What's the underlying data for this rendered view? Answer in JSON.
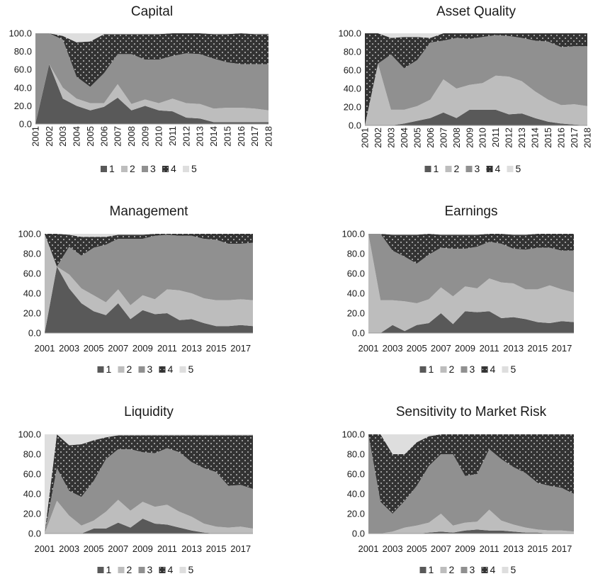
{
  "colors": {
    "1": "#595959",
    "2": "#bdbdbd",
    "3": "#909090",
    "4": "#333333",
    "5": "#dedede"
  },
  "chart_data": [
    {
      "type": "area",
      "stacked": true,
      "title": "Capital",
      "x": [
        "2001",
        "2002",
        "2003",
        "2004",
        "2005",
        "2006",
        "2007",
        "2008",
        "2009",
        "2010",
        "2011",
        "2012",
        "2013",
        "2014",
        "2015",
        "2016",
        "2017",
        "2018"
      ],
      "x_tick_labels": [
        "2001",
        "2002",
        "2003",
        "2004",
        "2005",
        "2006",
        "2007",
        "2008",
        "2009",
        "2010",
        "2011",
        "2012",
        "2013",
        "2014",
        "2015",
        "2016",
        "2017",
        "2018"
      ],
      "ylim": [
        0,
        100
      ],
      "yticks": [
        "0.0",
        "20.0",
        "40.0",
        "60.0",
        "80.0",
        "100.0"
      ],
      "legend": {
        "position": "bottom",
        "entries": [
          "1",
          "2",
          "3",
          "4",
          "5"
        ]
      },
      "series": [
        {
          "name": "1",
          "values": [
            0,
            66,
            28,
            20,
            15,
            19,
            29,
            15,
            20,
            15,
            14,
            7,
            6,
            2,
            2,
            2,
            2,
            2
          ]
        },
        {
          "name": "2",
          "values": [
            0,
            0,
            12,
            8,
            8,
            4,
            15,
            7,
            7,
            8,
            14,
            16,
            16,
            15,
            16,
            16,
            15,
            13
          ]
        },
        {
          "name": "3",
          "values": [
            100,
            34,
            53,
            24,
            18,
            33,
            33,
            55,
            44,
            48,
            47,
            55,
            55,
            55,
            50,
            48,
            49,
            51
          ]
        },
        {
          "name": "4",
          "values": [
            0,
            0,
            4,
            38,
            50,
            43,
            22,
            22,
            28,
            28,
            25,
            22,
            23,
            27,
            31,
            34,
            33,
            33
          ]
        },
        {
          "name": "5",
          "values": [
            0,
            0,
            3,
            10,
            9,
            1,
            1,
            1,
            1,
            1,
            0,
            0,
            0,
            1,
            1,
            0,
            1,
            1
          ]
        }
      ]
    },
    {
      "type": "area",
      "stacked": true,
      "title": "Asset Quality",
      "x": [
        "2001",
        "2002",
        "2003",
        "2004",
        "2005",
        "2006",
        "2007",
        "2008",
        "2009",
        "2010",
        "2011",
        "2012",
        "2013",
        "2014",
        "2015",
        "2016",
        "2017",
        "2018"
      ],
      "x_tick_labels": [
        "2001",
        "2002",
        "2003",
        "2004",
        "2005",
        "2006",
        "2007",
        "2008",
        "2009",
        "2010",
        "2011",
        "2012",
        "2013",
        "2014",
        "2015",
        "2016",
        "2017",
        "2018"
      ],
      "ylim": [
        0,
        100
      ],
      "yticks": [
        "0.0",
        "20.0",
        "40.0",
        "60.0",
        "80.0",
        "100.0"
      ],
      "legend": {
        "position": "bottom",
        "entries": [
          "1",
          "2",
          "3",
          "4",
          "5"
        ]
      },
      "series": [
        {
          "name": "1",
          "values": [
            0,
            0,
            0,
            2,
            5,
            8,
            14,
            8,
            17,
            17,
            17,
            12,
            13,
            8,
            4,
            2,
            1,
            0
          ]
        },
        {
          "name": "2",
          "values": [
            0,
            67,
            17,
            15,
            16,
            20,
            36,
            32,
            27,
            29,
            37,
            41,
            35,
            29,
            24,
            20,
            22,
            21
          ]
        },
        {
          "name": "3",
          "values": [
            0,
            0,
            60,
            45,
            50,
            62,
            42,
            55,
            50,
            50,
            44,
            44,
            47,
            55,
            63,
            63,
            63,
            65
          ]
        },
        {
          "name": "4",
          "values": [
            100,
            33,
            18,
            34,
            25,
            5,
            8,
            5,
            6,
            4,
            2,
            3,
            5,
            8,
            9,
            15,
            14,
            14
          ]
        },
        {
          "name": "5",
          "values": [
            0,
            0,
            5,
            4,
            4,
            5,
            0,
            0,
            0,
            0,
            0,
            0,
            0,
            0,
            0,
            0,
            0,
            0
          ]
        }
      ]
    },
    {
      "type": "area",
      "stacked": true,
      "title": "Management",
      "x": [
        "2001",
        "2002",
        "2003",
        "2004",
        "2005",
        "2006",
        "2007",
        "2008",
        "2009",
        "2010",
        "2011",
        "2012",
        "2013",
        "2014",
        "2015",
        "2016",
        "2017",
        "2018"
      ],
      "x_tick_labels": [
        "2001",
        "2003",
        "2005",
        "2007",
        "2009",
        "2011",
        "2013",
        "2015",
        "2017"
      ],
      "ylim": [
        0,
        100
      ],
      "yticks": [
        "0.0",
        "20.0",
        "40.0",
        "60.0",
        "80.0",
        "100.0"
      ],
      "legend": {
        "position": "bottom",
        "entries": [
          "1",
          "2",
          "3",
          "4",
          "5"
        ]
      },
      "series": [
        {
          "name": "1",
          "values": [
            0,
            67,
            45,
            30,
            22,
            18,
            30,
            14,
            23,
            19,
            20,
            13,
            14,
            10,
            7,
            7,
            8,
            7
          ]
        },
        {
          "name": "2",
          "values": [
            100,
            0,
            14,
            15,
            16,
            13,
            14,
            14,
            15,
            15,
            24,
            30,
            26,
            25,
            26,
            26,
            26,
            26
          ]
        },
        {
          "name": "3",
          "values": [
            0,
            0,
            28,
            33,
            48,
            58,
            51,
            67,
            57,
            64,
            55,
            55,
            58,
            60,
            61,
            57,
            56,
            58
          ]
        },
        {
          "name": "4",
          "values": [
            0,
            33,
            12,
            19,
            11,
            8,
            4,
            4,
            4,
            2,
            1,
            2,
            2,
            5,
            6,
            10,
            10,
            9
          ]
        },
        {
          "name": "5",
          "values": [
            0,
            0,
            1,
            3,
            3,
            3,
            1,
            1,
            1,
            0,
            0,
            0,
            0,
            0,
            0,
            0,
            0,
            0
          ]
        }
      ]
    },
    {
      "type": "area",
      "stacked": true,
      "title": "Earnings",
      "x": [
        "2001",
        "2002",
        "2003",
        "2004",
        "2005",
        "2006",
        "2007",
        "2008",
        "2009",
        "2010",
        "2011",
        "2012",
        "2013",
        "2014",
        "2015",
        "2016",
        "2017",
        "2018"
      ],
      "x_tick_labels": [
        "2001",
        "2003",
        "2005",
        "2007",
        "2009",
        "2011",
        "2013",
        "2015",
        "2017"
      ],
      "ylim": [
        0,
        100
      ],
      "yticks": [
        "0.0",
        "20.0",
        "40.0",
        "60.0",
        "80.0",
        "100.0"
      ],
      "legend": {
        "position": "bottom",
        "entries": [
          "1",
          "2",
          "3",
          "4",
          "5"
        ]
      },
      "series": [
        {
          "name": "1",
          "values": [
            0,
            0,
            8,
            2,
            8,
            10,
            20,
            9,
            22,
            21,
            22,
            15,
            16,
            14,
            11,
            10,
            12,
            11
          ]
        },
        {
          "name": "2",
          "values": [
            100,
            33,
            25,
            30,
            22,
            24,
            26,
            28,
            25,
            24,
            33,
            36,
            34,
            30,
            33,
            38,
            32,
            30
          ]
        },
        {
          "name": "3",
          "values": [
            0,
            67,
            50,
            45,
            40,
            45,
            40,
            48,
            38,
            42,
            37,
            39,
            35,
            40,
            42,
            38,
            39,
            42
          ]
        },
        {
          "name": "4",
          "values": [
            0,
            0,
            16,
            22,
            29,
            21,
            13,
            14,
            14,
            12,
            8,
            10,
            14,
            15,
            14,
            14,
            17,
            17
          ]
        },
        {
          "name": "5",
          "values": [
            0,
            0,
            1,
            1,
            1,
            0,
            1,
            1,
            1,
            1,
            0,
            0,
            1,
            1,
            0,
            0,
            0,
            0
          ]
        }
      ]
    },
    {
      "type": "area",
      "stacked": true,
      "title": "Liquidity",
      "x": [
        "2001",
        "2002",
        "2003",
        "2004",
        "2005",
        "2006",
        "2007",
        "2008",
        "2009",
        "2010",
        "2011",
        "2012",
        "2013",
        "2014",
        "2015",
        "2016",
        "2017",
        "2018"
      ],
      "x_tick_labels": [
        "2001",
        "2003",
        "2005",
        "2007",
        "2009",
        "2011",
        "2013",
        "2015",
        "2017"
      ],
      "ylim": [
        0,
        100
      ],
      "yticks": [
        "0.0",
        "20.0",
        "40.0",
        "60.0",
        "80.0",
        "100.0"
      ],
      "legend": {
        "position": "bottom",
        "entries": [
          "1",
          "2",
          "3",
          "4",
          "5"
        ]
      },
      "series": [
        {
          "name": "1",
          "values": [
            0,
            0,
            0,
            0,
            5,
            5,
            11,
            6,
            15,
            10,
            9,
            6,
            3,
            1,
            0,
            0,
            0,
            0
          ]
        },
        {
          "name": "2",
          "values": [
            0,
            33,
            18,
            8,
            8,
            17,
            23,
            17,
            17,
            17,
            20,
            16,
            14,
            9,
            7,
            6,
            7,
            5
          ]
        },
        {
          "name": "3",
          "values": [
            0,
            33,
            25,
            29,
            40,
            53,
            51,
            62,
            50,
            54,
            57,
            60,
            55,
            56,
            55,
            42,
            42,
            40
          ]
        },
        {
          "name": "4",
          "values": [
            0,
            34,
            46,
            53,
            41,
            22,
            14,
            14,
            17,
            18,
            13,
            17,
            27,
            33,
            37,
            51,
            50,
            54
          ]
        },
        {
          "name": "5",
          "values": [
            100,
            0,
            11,
            10,
            6,
            3,
            1,
            1,
            1,
            1,
            1,
            1,
            1,
            1,
            1,
            1,
            1,
            1
          ]
        }
      ]
    },
    {
      "type": "area",
      "stacked": true,
      "title": "Sensitivity to Market Risk",
      "x": [
        "2001",
        "2002",
        "2003",
        "2004",
        "2005",
        "2006",
        "2007",
        "2008",
        "2009",
        "2010",
        "2011",
        "2012",
        "2013",
        "2014",
        "2015",
        "2016",
        "2017",
        "2018"
      ],
      "x_tick_labels": [
        "2001",
        "2003",
        "2005",
        "2007",
        "2009",
        "2011",
        "2013",
        "2015",
        "2017"
      ],
      "ylim": [
        0,
        100
      ],
      "yticks": [
        "0.0",
        "20.0",
        "40.0",
        "60.0",
        "80.0",
        "100.0"
      ],
      "legend": {
        "position": "bottom",
        "entries": [
          "1",
          "2",
          "3",
          "4",
          "5"
        ]
      },
      "series": [
        {
          "name": "1",
          "values": [
            0,
            0,
            0,
            0,
            0,
            1,
            2,
            1,
            3,
            4,
            3,
            3,
            2,
            1,
            1,
            0,
            0,
            0
          ]
        },
        {
          "name": "2",
          "values": [
            0,
            0,
            2,
            6,
            8,
            10,
            18,
            7,
            8,
            8,
            21,
            10,
            7,
            5,
            3,
            3,
            3,
            2
          ]
        },
        {
          "name": "3",
          "values": [
            100,
            32,
            18,
            27,
            40,
            57,
            60,
            72,
            47,
            48,
            61,
            62,
            58,
            55,
            47,
            45,
            43,
            38
          ]
        },
        {
          "name": "4",
          "values": [
            0,
            68,
            60,
            47,
            44,
            30,
            20,
            20,
            42,
            40,
            15,
            25,
            33,
            39,
            49,
            52,
            54,
            60
          ]
        },
        {
          "name": "5",
          "values": [
            0,
            0,
            20,
            20,
            8,
            2,
            0,
            0,
            0,
            0,
            0,
            0,
            0,
            0,
            0,
            0,
            0,
            0
          ]
        }
      ]
    }
  ]
}
